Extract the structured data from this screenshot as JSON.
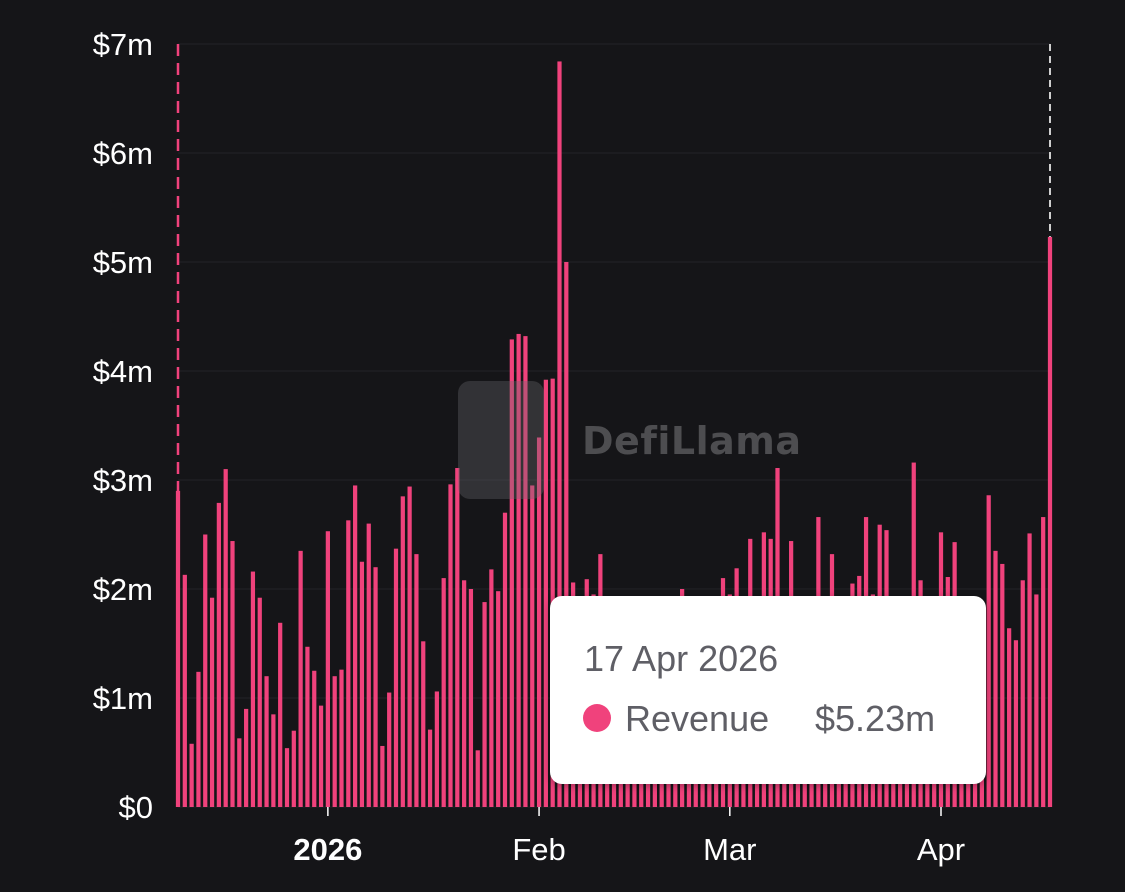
{
  "chart_data": {
    "type": "bar",
    "title": "",
    "xlabel": "",
    "ylabel": "",
    "x_range": [
      "2025-12-10",
      "2026-04-17"
    ],
    "ylim": [
      0,
      7000000
    ],
    "y_ticks": [
      {
        "value": 0,
        "label": "$0"
      },
      {
        "value": 1000000,
        "label": "$1m"
      },
      {
        "value": 2000000,
        "label": "$2m"
      },
      {
        "value": 3000000,
        "label": "$3m"
      },
      {
        "value": 4000000,
        "label": "$4m"
      },
      {
        "value": 5000000,
        "label": "$5m"
      },
      {
        "value": 6000000,
        "label": "$6m"
      },
      {
        "value": 7000000,
        "label": "$7m"
      }
    ],
    "x_ticks": [
      {
        "date": "2026-01-01",
        "label": "2026",
        "bold": true
      },
      {
        "date": "2026-02-01",
        "label": "Feb",
        "bold": false
      },
      {
        "date": "2026-03-01",
        "label": "Mar",
        "bold": false
      },
      {
        "date": "2026-04-01",
        "label": "Apr",
        "bold": false
      }
    ],
    "grid": true,
    "series": [
      {
        "name": "Revenue",
        "color": "#f0427c",
        "x": [
          "2025-12-10",
          "2025-12-11",
          "2025-12-12",
          "2025-12-13",
          "2025-12-14",
          "2025-12-15",
          "2025-12-16",
          "2025-12-17",
          "2025-12-18",
          "2025-12-19",
          "2025-12-20",
          "2025-12-21",
          "2025-12-22",
          "2025-12-23",
          "2025-12-24",
          "2025-12-25",
          "2025-12-26",
          "2025-12-27",
          "2025-12-28",
          "2025-12-29",
          "2025-12-30",
          "2025-12-31",
          "2026-01-01",
          "2026-01-02",
          "2026-01-03",
          "2026-01-04",
          "2026-01-05",
          "2026-01-06",
          "2026-01-07",
          "2026-01-08",
          "2026-01-09",
          "2026-01-10",
          "2026-01-11",
          "2026-01-12",
          "2026-01-13",
          "2026-01-14",
          "2026-01-15",
          "2026-01-16",
          "2026-01-17",
          "2026-01-18",
          "2026-01-19",
          "2026-01-20",
          "2026-01-21",
          "2026-01-22",
          "2026-01-23",
          "2026-01-24",
          "2026-01-25",
          "2026-01-26",
          "2026-01-27",
          "2026-01-28",
          "2026-01-29",
          "2026-01-30",
          "2026-01-31",
          "2026-02-01",
          "2026-02-02",
          "2026-02-03",
          "2026-02-04",
          "2026-02-05",
          "2026-02-06",
          "2026-02-07",
          "2026-02-08",
          "2026-02-09",
          "2026-02-10",
          "2026-02-11",
          "2026-02-12",
          "2026-02-13",
          "2026-02-14",
          "2026-02-15",
          "2026-02-16",
          "2026-02-17",
          "2026-02-18",
          "2026-02-19",
          "2026-02-20",
          "2026-02-21",
          "2026-02-22",
          "2026-02-23",
          "2026-02-24",
          "2026-02-25",
          "2026-02-26",
          "2026-02-27",
          "2026-02-28",
          "2026-03-01",
          "2026-03-02",
          "2026-03-03",
          "2026-03-04",
          "2026-03-05",
          "2026-03-06",
          "2026-03-07",
          "2026-03-08",
          "2026-03-09",
          "2026-03-10",
          "2026-03-11",
          "2026-03-12",
          "2026-03-13",
          "2026-03-14",
          "2026-03-15",
          "2026-03-16",
          "2026-03-17",
          "2026-03-18",
          "2026-03-19",
          "2026-03-20",
          "2026-03-21",
          "2026-03-22",
          "2026-03-23",
          "2026-03-24",
          "2026-03-25",
          "2026-03-26",
          "2026-03-27",
          "2026-03-28",
          "2026-03-29",
          "2026-03-30",
          "2026-03-31",
          "2026-04-01",
          "2026-04-02",
          "2026-04-03",
          "2026-04-04",
          "2026-04-05",
          "2026-04-06",
          "2026-04-07",
          "2026-04-08",
          "2026-04-09",
          "2026-04-10",
          "2026-04-11",
          "2026-04-12",
          "2026-04-13",
          "2026-04-14",
          "2026-04-15",
          "2026-04-16",
          "2026-04-17"
        ],
        "values": [
          2900000,
          2130000,
          580000,
          1240000,
          2500000,
          1920000,
          2790000,
          3100000,
          2440000,
          630000,
          900000,
          2160000,
          1920000,
          1200000,
          850000,
          1690000,
          540000,
          700000,
          2350000,
          1470000,
          1250000,
          930000,
          2530000,
          1200000,
          1260000,
          2630000,
          2950000,
          2250000,
          2600000,
          2200000,
          560000,
          1050000,
          2370000,
          2850000,
          2940000,
          2320000,
          1520000,
          710000,
          1060000,
          2100000,
          2960000,
          3110000,
          2080000,
          2000000,
          520000,
          1880000,
          2180000,
          1980000,
          2700000,
          4290000,
          4340000,
          4320000,
          2950000,
          3390000,
          3920000,
          3930000,
          6840000,
          5000000,
          2060000,
          1800000,
          2090000,
          1950000,
          2320000,
          1500000,
          1600000,
          1700000,
          1850000,
          1800000,
          1750000,
          1700000,
          1800000,
          1600000,
          1700000,
          1900000,
          2000000,
          1800000,
          1700000,
          1800000,
          1900000,
          1700000,
          2100000,
          1950000,
          2190000,
          1900000,
          2460000,
          1700000,
          2520000,
          2460000,
          3110000,
          1840000,
          2440000,
          1500000,
          1600000,
          1800000,
          2660000,
          1700000,
          2320000,
          1600000,
          1800000,
          2050000,
          2120000,
          2660000,
          1950000,
          2590000,
          2540000,
          1900000,
          1800000,
          1700000,
          3160000,
          2080000,
          1800000,
          1800000,
          2520000,
          2110000,
          2430000,
          1800000,
          1700000,
          1600000,
          1800000,
          2860000,
          2350000,
          2230000,
          1640000,
          1530000,
          2080000,
          2510000,
          1950000,
          2660000,
          5230000
        ]
      }
    ]
  },
  "watermark": {
    "text": "DefiLlama"
  },
  "tooltip": {
    "date": "17 Apr 2026",
    "series_label": "Revenue",
    "value": "$5.23m",
    "dot_color": "#f0427c"
  },
  "colors": {
    "background": "#151518",
    "bar": "#f0427c",
    "crosshair_start": "#f0427c",
    "crosshair_end": "#cfcfcf",
    "grid": "#232327"
  }
}
